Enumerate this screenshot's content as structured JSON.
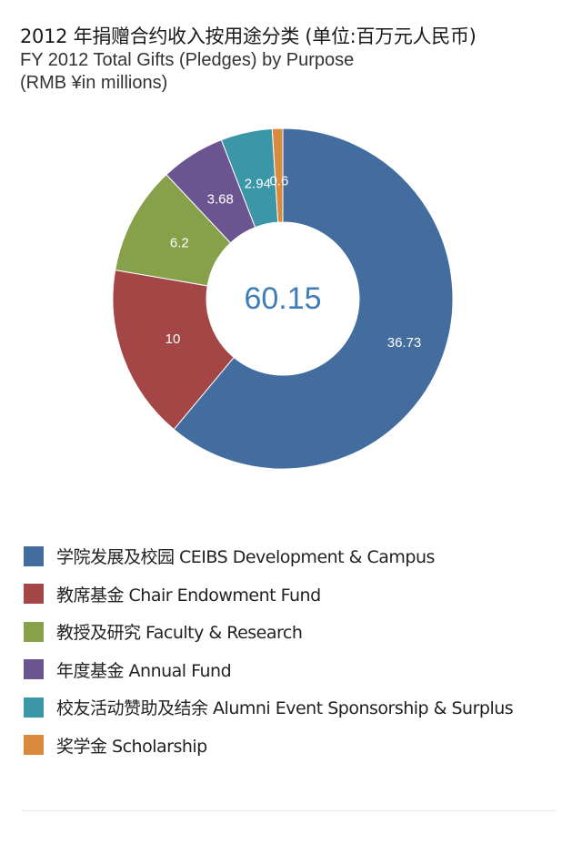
{
  "header": {
    "title_cn": "2012 年捐赠合约收入按用途分类 (单位:百万元人民币)",
    "title_en_line1": "FY 2012 Total Gifts (Pledges) by Purpose",
    "title_en_line2": "(RMB ¥in millions)"
  },
  "chart_data": {
    "type": "pie",
    "donut": true,
    "center_label": "60.15",
    "center_label_color": "#3d7dba",
    "slices": [
      {
        "label": "学院发展及校园 CEIBS Development & Campus",
        "value": 36.73,
        "value_label": "36.73",
        "color": "#446d9f"
      },
      {
        "label": "教席基金 Chair Endowment Fund",
        "value": 10,
        "value_label": "10",
        "color": "#a44646"
      },
      {
        "label": "教授及研究 Faculty & Research",
        "value": 6.2,
        "value_label": "6.2",
        "color": "#87a04a"
      },
      {
        "label": "年度基金 Annual Fund",
        "value": 3.68,
        "value_label": "3.68",
        "color": "#6a5590"
      },
      {
        "label": "校友活动赞助及结余 Alumni Event Sponsorship & Surplus",
        "value": 2.94,
        "value_label": "2.94",
        "color": "#3b96a8"
      },
      {
        "label": "奖学金 Scholarship",
        "value": 0.6,
        "value_label": "0.6",
        "color": "#d98a3c"
      }
    ],
    "legend_position": "bottom-left"
  }
}
